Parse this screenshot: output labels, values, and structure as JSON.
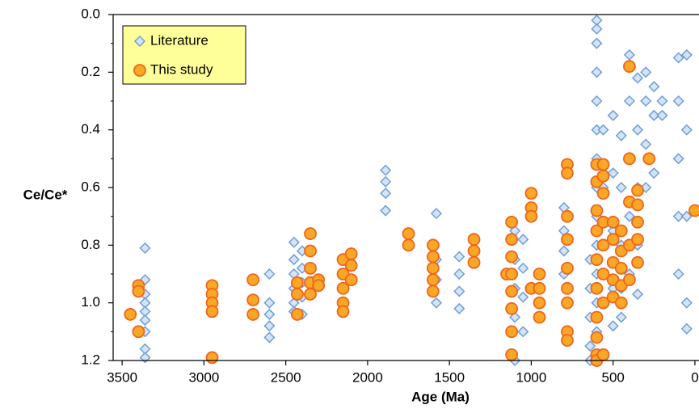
{
  "chart_data": {
    "type": "scatter",
    "x_label": "Age (Ma)",
    "y_label": "Ce/Ce*",
    "xlim": [
      3555,
      -25
    ],
    "ylim": [
      0,
      1.2
    ],
    "y_inverted": true,
    "xticks": [
      3500,
      3000,
      2500,
      2000,
      1500,
      1000,
      500,
      0
    ],
    "yticks": [
      {
        "value": 0,
        "label": "0.0"
      },
      0.2,
      0.4,
      0.6,
      0.8,
      {
        "value": 1,
        "label": "1.0"
      },
      1.2
    ],
    "legend": "upper left",
    "legend_color": "#ffff99",
    "series": [
      {
        "name": "Literature",
        "marker": "diamond",
        "color": "#d6e4f7",
        "edge_color": "#6f9fd8",
        "x": [
          3360,
          3360,
          3360,
          3360,
          3360,
          3360,
          3360,
          3360,
          3360,
          2600,
          2600,
          2600,
          2600,
          2600,
          2450,
          2450,
          2450,
          2450,
          2450,
          2450,
          2400,
          2400,
          2400,
          2400,
          2400,
          1890,
          1890,
          1890,
          1890,
          1580,
          1580,
          1580,
          1580,
          1440,
          1440,
          1440,
          1440,
          1100,
          1100,
          1100,
          1100,
          1100,
          1050,
          1050,
          1050,
          1050,
          800,
          800,
          800,
          800,
          640,
          640,
          640,
          640,
          640,
          600,
          600,
          600,
          600,
          600,
          600,
          600,
          600,
          600,
          600,
          600,
          600,
          600,
          560,
          560,
          560,
          560,
          500,
          500,
          500,
          500,
          500,
          450,
          450,
          450,
          450,
          450,
          400,
          400,
          400,
          400,
          400,
          350,
          350,
          350,
          350,
          350,
          300,
          300,
          300,
          300,
          250,
          250,
          250,
          200,
          200,
          100,
          100,
          100,
          100,
          100,
          50,
          50,
          50,
          50,
          50
        ],
        "y": [
          0.81,
          0.92,
          0.97,
          1.0,
          1.03,
          1.06,
          1.1,
          1.16,
          1.19,
          0.9,
          1.0,
          1.04,
          1.08,
          1.12,
          0.79,
          0.85,
          0.9,
          0.95,
          1.0,
          1.03,
          0.82,
          0.88,
          0.93,
          0.98,
          1.04,
          0.54,
          0.58,
          0.62,
          0.68,
          0.69,
          0.85,
          0.92,
          1.0,
          0.84,
          0.9,
          0.96,
          1.02,
          0.75,
          0.85,
          0.95,
          1.05,
          1.2,
          0.78,
          0.88,
          0.98,
          1.1,
          0.67,
          0.75,
          0.82,
          0.9,
          0.85,
          0.95,
          1.05,
          1.15,
          1.2,
          0.02,
          0.05,
          0.1,
          0.2,
          0.3,
          0.4,
          0.5,
          0.6,
          0.7,
          0.8,
          0.9,
          1.0,
          1.1,
          0.4,
          0.6,
          0.8,
          1.0,
          0.35,
          0.55,
          0.75,
          0.95,
          1.08,
          0.42,
          0.6,
          0.8,
          0.95,
          1.05,
          0.14,
          0.3,
          0.5,
          0.7,
          0.9,
          0.22,
          0.4,
          0.6,
          0.8,
          0.97,
          0.2,
          0.3,
          0.45,
          0.6,
          0.25,
          0.35,
          0.55,
          0.3,
          0.35,
          0.15,
          0.3,
          0.5,
          0.7,
          0.9,
          0.14,
          0.4,
          0.7,
          1.0,
          1.09
        ]
      },
      {
        "name": "This study",
        "marker": "circle",
        "color": "#f9a825",
        "edge_color": "#f0641e",
        "x": [
          3450,
          3400,
          3400,
          3400,
          2950,
          2950,
          2950,
          2950,
          2950,
          2700,
          2700,
          2700,
          2430,
          2430,
          2430,
          2350,
          2350,
          2350,
          2350,
          2350,
          2300,
          2300,
          2150,
          2150,
          2150,
          2150,
          2150,
          2100,
          2100,
          2100,
          1750,
          1750,
          1600,
          1600,
          1600,
          1600,
          1600,
          1350,
          1350,
          1350,
          1150,
          1120,
          1120,
          1120,
          1120,
          1120,
          1120,
          1120,
          1120,
          1000,
          1000,
          1000,
          1000,
          950,
          950,
          950,
          950,
          780,
          780,
          780,
          780,
          780,
          780,
          780,
          780,
          780,
          600,
          600,
          600,
          600,
          600,
          600,
          600,
          600,
          600,
          600,
          560,
          560,
          560,
          560,
          560,
          560,
          560,
          560,
          500,
          500,
          500,
          500,
          500,
          450,
          450,
          450,
          450,
          450,
          400,
          400,
          400,
          400,
          400,
          350,
          350,
          350,
          350,
          350,
          280,
          0
        ],
        "y": [
          1.04,
          0.94,
          0.96,
          1.1,
          0.94,
          0.97,
          1.0,
          1.03,
          1.19,
          0.92,
          0.99,
          1.04,
          0.93,
          0.97,
          1.04,
          0.76,
          0.82,
          0.88,
          0.93,
          0.97,
          0.92,
          0.94,
          0.85,
          0.9,
          0.95,
          1.0,
          1.03,
          0.83,
          0.87,
          0.92,
          0.76,
          0.8,
          0.8,
          0.84,
          0.88,
          0.92,
          0.96,
          0.78,
          0.82,
          0.86,
          0.9,
          0.72,
          0.78,
          0.84,
          0.9,
          0.96,
          1.02,
          1.1,
          1.18,
          0.62,
          0.67,
          0.7,
          0.95,
          0.9,
          0.95,
          1.0,
          1.05,
          0.52,
          0.55,
          0.7,
          0.78,
          0.88,
          0.95,
          1.0,
          1.1,
          1.13,
          0.52,
          0.58,
          0.68,
          0.75,
          0.85,
          0.95,
          1.05,
          1.12,
          1.18,
          1.2,
          0.52,
          0.56,
          0.62,
          0.72,
          0.8,
          0.9,
          1.0,
          1.18,
          0.72,
          0.78,
          0.86,
          0.92,
          0.98,
          0.75,
          0.82,
          0.88,
          0.94,
          1.0,
          0.18,
          0.5,
          0.65,
          0.8,
          0.92,
          0.61,
          0.66,
          0.72,
          0.78,
          0.86,
          0.5,
          0.68
        ]
      }
    ]
  }
}
